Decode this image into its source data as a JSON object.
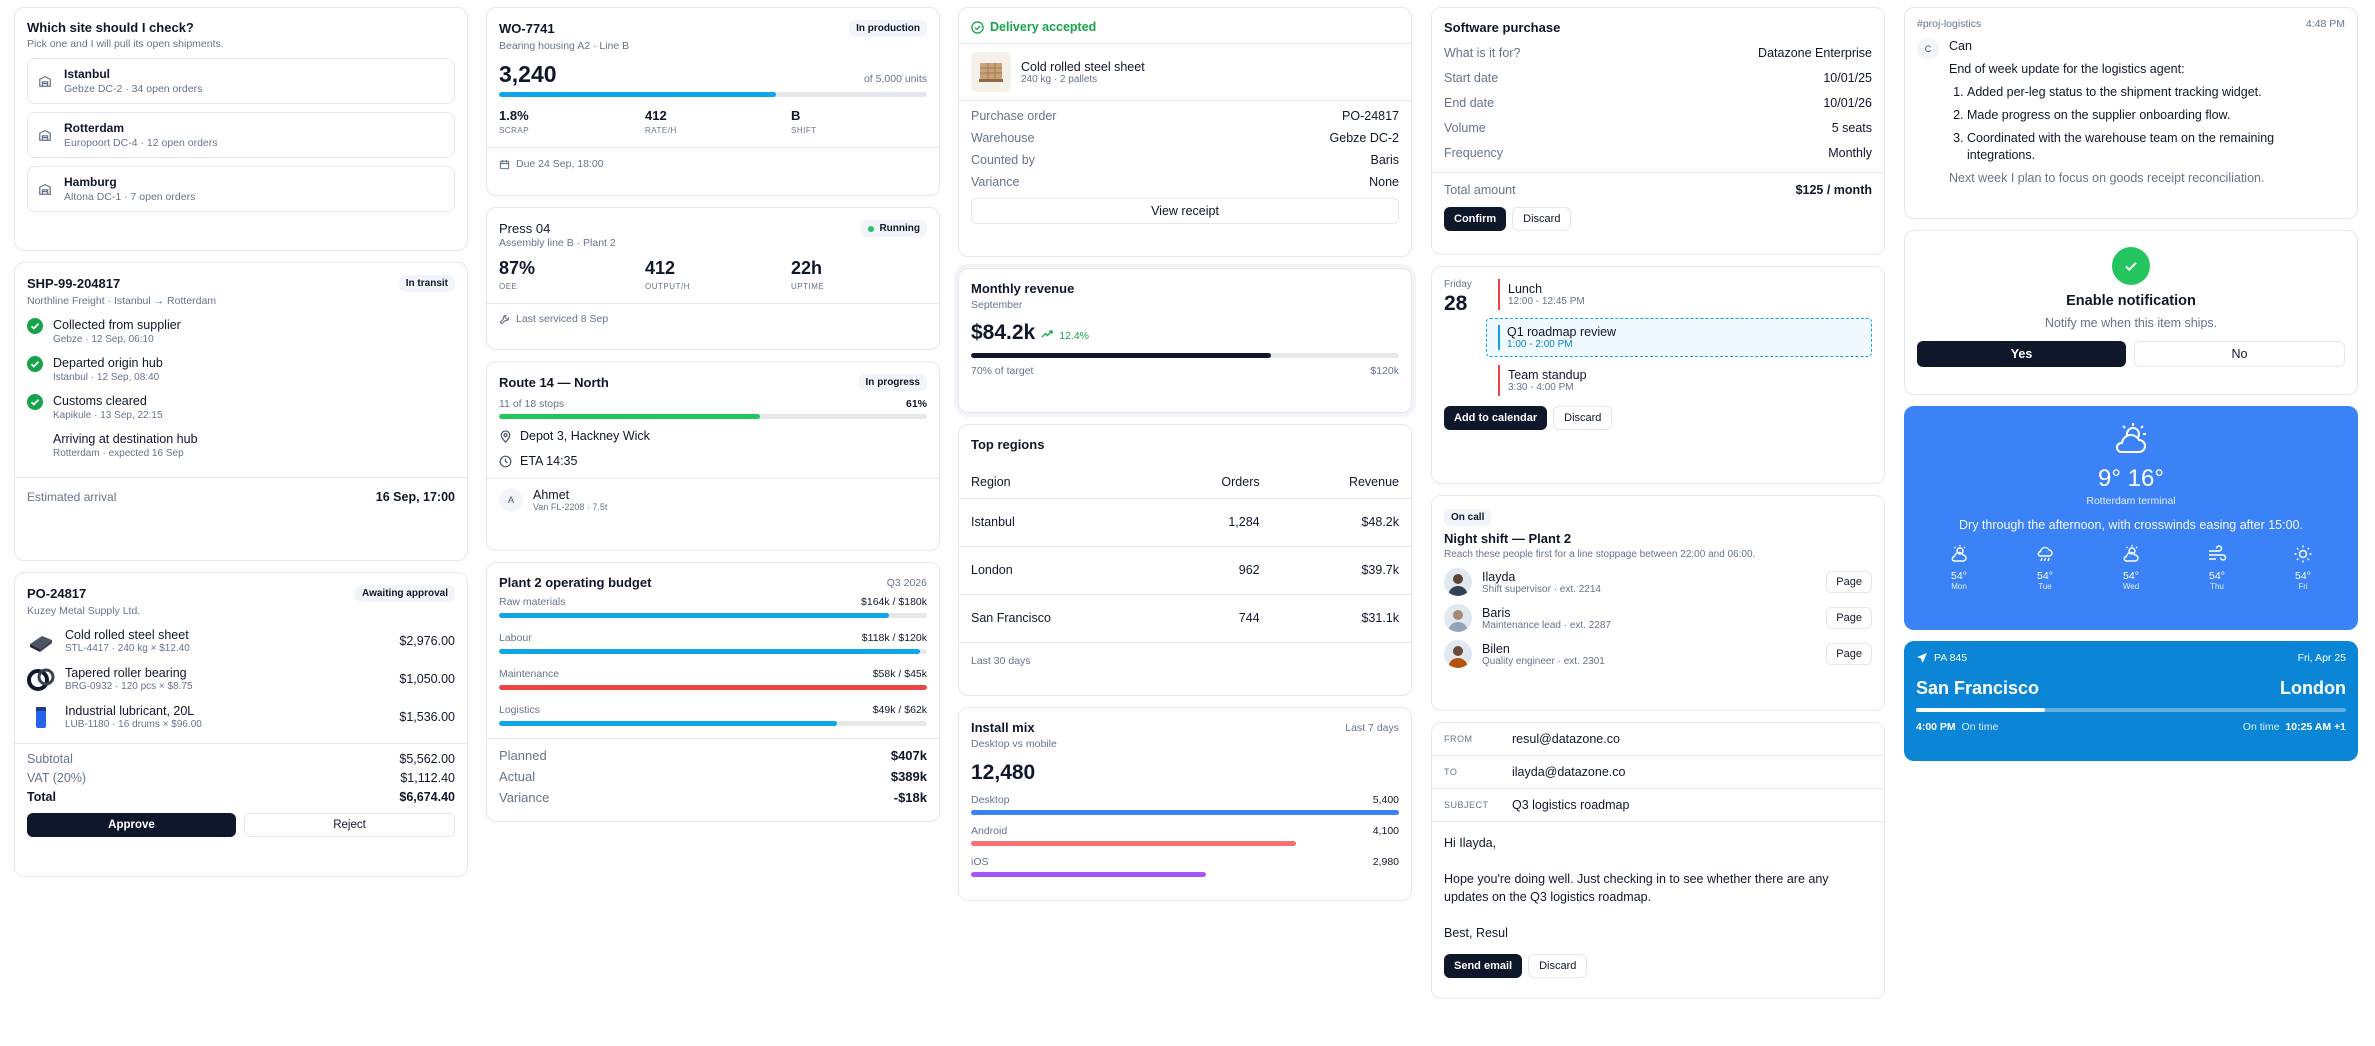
{
  "site_picker": {
    "title": "Which site should I check?",
    "subtitle": "Pick one and I will pull its open shipments.",
    "sites": [
      {
        "name": "Istanbul",
        "detail": "Gebze DC-2 · 34 open orders"
      },
      {
        "name": "Rotterdam",
        "detail": "Europoort DC-4 · 12 open orders"
      },
      {
        "name": "Hamburg",
        "detail": "Altona DC-1 · 7 open orders"
      }
    ]
  },
  "shipment": {
    "id": "SHP-99-204817",
    "status": "In transit",
    "route": "Northline Freight · Istanbul → Rotterdam",
    "steps": [
      {
        "title": "Collected from supplier",
        "detail": "Gebze · 12 Sep, 06:10",
        "done": true
      },
      {
        "title": "Departed origin hub",
        "detail": "Istanbul · 12 Sep, 08:40",
        "done": true
      },
      {
        "title": "Customs cleared",
        "detail": "Kapikule · 13 Sep, 22:15",
        "done": true
      },
      {
        "title": "Arriving at destination hub",
        "detail": "Rotterdam · expected 16 Sep",
        "done": false
      }
    ],
    "eta_label": "Estimated arrival",
    "eta_value": "16 Sep, 17:00"
  },
  "purchase_order": {
    "id": "PO-24817",
    "status": "Awaiting approval",
    "supplier": "Kuzey Metal Supply Ltd.",
    "items": [
      {
        "name": "Cold rolled steel sheet",
        "detail": "STL-4417 · 240 kg × $12.40",
        "price": "$2,976.00"
      },
      {
        "name": "Tapered roller bearing",
        "detail": "BRG-0932 · 120 pcs × $8.75",
        "price": "$1,050.00"
      },
      {
        "name": "Industrial lubricant, 20L",
        "detail": "LUB-1180 · 16 drums × $96.00",
        "price": "$1,536.00"
      }
    ],
    "subtotal_label": "Subtotal",
    "subtotal": "$5,562.00",
    "vat_label": "VAT (20%)",
    "vat": "$1,112.40",
    "total_label": "Total",
    "total": "$6,674.40",
    "approve_label": "Approve",
    "reject_label": "Reject"
  },
  "work_order": {
    "id": "WO-7741",
    "status": "In production",
    "subtitle": "Bearing housing A2 · Line B",
    "count": "3,240",
    "target": "of 5,000 units",
    "progress": 0.648,
    "stats": [
      {
        "value": "1.8%",
        "label": "SCRAP"
      },
      {
        "value": "412",
        "label": "RATE/H"
      },
      {
        "value": "B",
        "label": "SHIFT"
      }
    ],
    "due": "Due 24 Sep, 18:00"
  },
  "press": {
    "name": "Press 04",
    "subtitle": "Assembly line B · Plant 2",
    "status": "Running",
    "stats": [
      {
        "value": "87%",
        "label": "OEE"
      },
      {
        "value": "412",
        "label": "OUTPUT/H"
      },
      {
        "value": "22h",
        "label": "UPTIME"
      }
    ],
    "footer": "Last serviced 8 Sep"
  },
  "route": {
    "name": "Route 14 — North",
    "status": "In progress",
    "stops": "11 of 18 stops",
    "percent": "61%",
    "progress": 0.61,
    "location": "Depot 3, Hackney Wick",
    "eta": "ETA 14:35",
    "driver_initial": "A",
    "driver_name": "Ahmet",
    "driver_detail": "Van FL-2208 · 7.5t"
  },
  "budget": {
    "title": "Plant 2 operating budget",
    "period": "Q3 2026",
    "lines": [
      {
        "name": "Raw materials",
        "value": "$164k / $180k",
        "fill": 0.911,
        "color": "#0ea5e9"
      },
      {
        "name": "Labour",
        "value": "$118k / $120k",
        "fill": 0.983,
        "color": "#0ea5e9"
      },
      {
        "name": "Maintenance",
        "value": "$58k / $45k",
        "fill": 1.0,
        "color": "#ef4444"
      },
      {
        "name": "Logistics",
        "value": "$49k / $62k",
        "fill": 0.79,
        "color": "#0ea5e9"
      }
    ],
    "planned_label": "Planned",
    "planned": "$407k",
    "actual_label": "Actual",
    "actual": "$389k",
    "variance_label": "Variance",
    "variance": "-$18k"
  },
  "delivery": {
    "status": "Delivery accepted",
    "product": "Cold rolled steel sheet",
    "product_detail": "240 kg · 2 pallets",
    "fields": [
      {
        "label": "Purchase order",
        "value": "PO-24817"
      },
      {
        "label": "Warehouse",
        "value": "Gebze DC-2"
      },
      {
        "label": "Counted by",
        "value": "Baris"
      },
      {
        "label": "Variance",
        "value": "None"
      }
    ],
    "button": "View receipt"
  },
  "revenue": {
    "title": "Monthly revenue",
    "period": "September",
    "value": "$84.2k",
    "change": "12.4%",
    "progress": 0.7,
    "progress_label": "70% of target",
    "target": "$120k"
  },
  "regions": {
    "title": "Top regions",
    "columns": [
      "Region",
      "Orders",
      "Revenue"
    ],
    "rows": [
      [
        "Istanbul",
        "1,284",
        "$48.2k"
      ],
      [
        "London",
        "962",
        "$39.7k"
      ],
      [
        "San Francisco",
        "744",
        "$31.1k"
      ]
    ],
    "footer": "Last 30 days"
  },
  "install_mix": {
    "title": "Install mix",
    "period": "Last 7 days",
    "subtitle": "Desktop vs mobile",
    "total": "12,480",
    "platforms": [
      {
        "name": "Desktop",
        "value": "5,400",
        "fill": 1.0,
        "color": "#3b82f6"
      },
      {
        "name": "Android",
        "value": "4,100",
        "fill": 0.76,
        "color": "#f87171"
      },
      {
        "name": "iOS",
        "value": "2,980",
        "fill": 0.55,
        "color": "#a855f7"
      }
    ]
  },
  "software": {
    "title": "Software purchase",
    "fields": [
      {
        "label": "What is it for?",
        "value": "Datazone Enterprise"
      },
      {
        "label": "Start date",
        "value": "10/01/25"
      },
      {
        "label": "End date",
        "value": "10/01/26"
      },
      {
        "label": "Volume",
        "value": "5 seats"
      },
      {
        "label": "Frequency",
        "value": "Monthly"
      }
    ],
    "total_label": "Total amount",
    "total": "$125 / month",
    "confirm": "Confirm",
    "discard": "Discard"
  },
  "calendar": {
    "weekday": "Friday",
    "day": "28",
    "events": [
      {
        "title": "Lunch",
        "time": "12:00 - 12:45 PM",
        "color": "#ef4444",
        "highlight": false
      },
      {
        "title": "Q1 roadmap review",
        "time": "1:00 - 2:00 PM",
        "color": "#0ea5e9",
        "highlight": true
      },
      {
        "title": "Team standup",
        "time": "3:30 - 4:00 PM",
        "color": "#ef4444",
        "highlight": false
      }
    ],
    "add": "Add to calendar",
    "discard": "Discard"
  },
  "oncall": {
    "badge": "On call",
    "title": "Night shift — Plant 2",
    "subtitle": "Reach these people first for a line stoppage between 22:00 and 06:00.",
    "people": [
      {
        "name": "Ilayda",
        "role": "Shift supervisor · ext. 2214",
        "button": "Page"
      },
      {
        "name": "Baris",
        "role": "Maintenance lead · ext. 2287",
        "button": "Page"
      },
      {
        "name": "Bilen",
        "role": "Quality engineer · ext. 2301",
        "button": "Page"
      }
    ]
  },
  "email": {
    "from_label": "FROM",
    "from": "resul@datazone.co",
    "to_label": "TO",
    "to": "ilayda@datazone.co",
    "subject_label": "SUBJECT",
    "subject": "Q3 logistics roadmap",
    "greeting": "Hi Ilayda,",
    "body": "Hope you're doing well. Just checking in to see whether there are any updates on the Q3 logistics roadmap.",
    "signoff": "Best, Resul",
    "send": "Send email",
    "discard": "Discard"
  },
  "slack": {
    "channel": "#proj-logistics",
    "time": "4:48 PM",
    "avatar": "C",
    "author": "Can",
    "intro": "End of week update for the logistics agent:",
    "points": [
      "Added per-leg status to the shipment tracking widget.",
      "Made progress on the supplier onboarding flow.",
      "Coordinated with the warehouse team on the remaining integrations."
    ],
    "outro": "Next week I plan to focus on goods receipt reconciliation."
  },
  "notification": {
    "title": "Enable notification",
    "subtitle": "Notify me when this item ships.",
    "yes": "Yes",
    "no": "No"
  },
  "weather": {
    "low": "9°",
    "high": "16°",
    "location": "Rotterdam terminal",
    "summary": "Dry through the afternoon, with crosswinds easing after 15:00.",
    "days": [
      {
        "temp": "54°",
        "day": "Mon",
        "icon": "partly-sunny-icon"
      },
      {
        "temp": "54°",
        "day": "Tue",
        "icon": "rain-icon"
      },
      {
        "temp": "54°",
        "day": "Wed",
        "icon": "partly-sunny-icon"
      },
      {
        "temp": "54°",
        "day": "Thu",
        "icon": "wind-icon"
      },
      {
        "temp": "54°",
        "day": "Fri",
        "icon": "sun-icon"
      }
    ]
  },
  "flight": {
    "number": "PA 845",
    "date": "Fri, Apr 25",
    "from": "San Francisco",
    "to": "London",
    "progress": 0.3,
    "depart_time": "4:00 PM",
    "depart_status": "On time",
    "arrive_status": "On time",
    "arrive_time": "10:25 AM +1"
  }
}
